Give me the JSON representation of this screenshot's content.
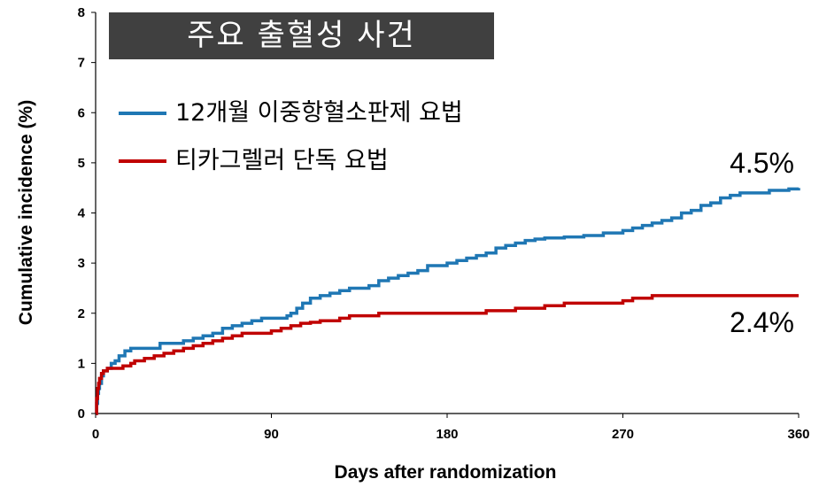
{
  "chart_data": {
    "type": "line",
    "title": "주요 출혈성 사건",
    "xlabel": "Days after randomization",
    "ylabel": "Cumulative incidence (%)",
    "xlim": [
      0,
      360
    ],
    "ylim": [
      0,
      8
    ],
    "x_ticks": [
      "0",
      "90",
      "180",
      "270",
      "360"
    ],
    "y_ticks": [
      "0",
      "1",
      "2",
      "3",
      "4",
      "5",
      "6",
      "7",
      "8"
    ],
    "grid": false,
    "legend_position": "top-left",
    "series": [
      {
        "name": "12개월 이중항혈소판제 요법",
        "color": "#1f77b4",
        "end_label": "4.5%",
        "points": [
          [
            0,
            0
          ],
          [
            0.5,
            0.2
          ],
          [
            1,
            0.4
          ],
          [
            1.5,
            0.5
          ],
          [
            2,
            0.6
          ],
          [
            3,
            0.75
          ],
          [
            4,
            0.85
          ],
          [
            6,
            0.9
          ],
          [
            8,
            1.0
          ],
          [
            10,
            1.05
          ],
          [
            12,
            1.15
          ],
          [
            15,
            1.25
          ],
          [
            18,
            1.3
          ],
          [
            30,
            1.3
          ],
          [
            33,
            1.4
          ],
          [
            45,
            1.45
          ],
          [
            50,
            1.5
          ],
          [
            55,
            1.55
          ],
          [
            60,
            1.6
          ],
          [
            65,
            1.7
          ],
          [
            70,
            1.75
          ],
          [
            75,
            1.8
          ],
          [
            80,
            1.85
          ],
          [
            85,
            1.9
          ],
          [
            95,
            1.9
          ],
          [
            98,
            1.95
          ],
          [
            100,
            2.0
          ],
          [
            103,
            2.1
          ],
          [
            106,
            2.2
          ],
          [
            110,
            2.3
          ],
          [
            115,
            2.35
          ],
          [
            120,
            2.4
          ],
          [
            125,
            2.45
          ],
          [
            130,
            2.5
          ],
          [
            140,
            2.55
          ],
          [
            145,
            2.65
          ],
          [
            150,
            2.7
          ],
          [
            155,
            2.75
          ],
          [
            160,
            2.8
          ],
          [
            165,
            2.85
          ],
          [
            170,
            2.95
          ],
          [
            180,
            3.0
          ],
          [
            185,
            3.05
          ],
          [
            190,
            3.1
          ],
          [
            195,
            3.15
          ],
          [
            200,
            3.2
          ],
          [
            205,
            3.3
          ],
          [
            210,
            3.35
          ],
          [
            215,
            3.4
          ],
          [
            220,
            3.45
          ],
          [
            225,
            3.48
          ],
          [
            230,
            3.5
          ],
          [
            240,
            3.52
          ],
          [
            250,
            3.55
          ],
          [
            260,
            3.6
          ],
          [
            270,
            3.65
          ],
          [
            275,
            3.7
          ],
          [
            280,
            3.75
          ],
          [
            285,
            3.8
          ],
          [
            290,
            3.85
          ],
          [
            295,
            3.9
          ],
          [
            300,
            4.0
          ],
          [
            305,
            4.05
          ],
          [
            310,
            4.15
          ],
          [
            315,
            4.2
          ],
          [
            320,
            4.3
          ],
          [
            325,
            4.35
          ],
          [
            330,
            4.4
          ],
          [
            345,
            4.45
          ],
          [
            355,
            4.48
          ],
          [
            360,
            4.5
          ]
        ]
      },
      {
        "name": "티카그렐러 단독 요법",
        "color": "#c00000",
        "end_label": "2.4%",
        "points": [
          [
            0,
            0
          ],
          [
            0.5,
            0.3
          ],
          [
            1,
            0.5
          ],
          [
            1.5,
            0.6
          ],
          [
            2,
            0.7
          ],
          [
            3,
            0.8
          ],
          [
            4,
            0.85
          ],
          [
            6,
            0.9
          ],
          [
            10,
            0.9
          ],
          [
            14,
            0.95
          ],
          [
            18,
            1.0
          ],
          [
            20,
            1.05
          ],
          [
            25,
            1.1
          ],
          [
            30,
            1.15
          ],
          [
            35,
            1.2
          ],
          [
            40,
            1.25
          ],
          [
            45,
            1.3
          ],
          [
            50,
            1.35
          ],
          [
            55,
            1.4
          ],
          [
            60,
            1.45
          ],
          [
            65,
            1.5
          ],
          [
            70,
            1.55
          ],
          [
            75,
            1.6
          ],
          [
            85,
            1.6
          ],
          [
            90,
            1.65
          ],
          [
            95,
            1.7
          ],
          [
            100,
            1.75
          ],
          [
            105,
            1.8
          ],
          [
            110,
            1.82
          ],
          [
            115,
            1.85
          ],
          [
            120,
            1.85
          ],
          [
            125,
            1.9
          ],
          [
            130,
            1.95
          ],
          [
            140,
            1.95
          ],
          [
            145,
            2.0
          ],
          [
            150,
            2.0
          ],
          [
            170,
            2.0
          ],
          [
            180,
            2.0
          ],
          [
            195,
            2.0
          ],
          [
            200,
            2.05
          ],
          [
            205,
            2.05
          ],
          [
            215,
            2.1
          ],
          [
            225,
            2.1
          ],
          [
            230,
            2.15
          ],
          [
            235,
            2.15
          ],
          [
            240,
            2.2
          ],
          [
            260,
            2.2
          ],
          [
            270,
            2.25
          ],
          [
            275,
            2.3
          ],
          [
            280,
            2.3
          ],
          [
            285,
            2.35
          ],
          [
            300,
            2.35
          ],
          [
            320,
            2.35
          ],
          [
            340,
            2.35
          ],
          [
            360,
            2.35
          ]
        ]
      }
    ]
  }
}
